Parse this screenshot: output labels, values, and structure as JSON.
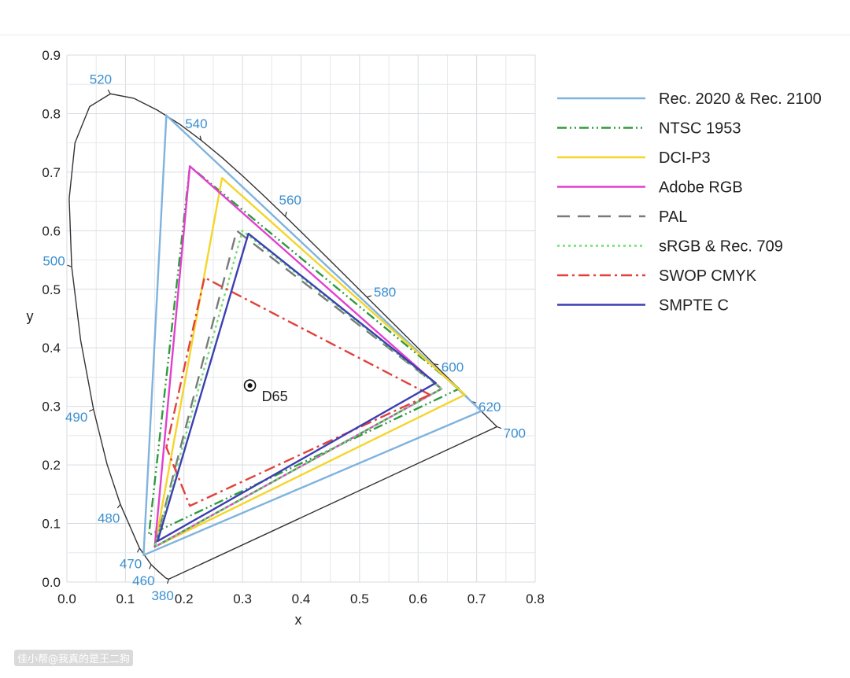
{
  "chart_data": {
    "type": "line",
    "title": "",
    "xlabel": "x",
    "ylabel": "y",
    "xlim": [
      0.0,
      0.8
    ],
    "ylim": [
      0.0,
      0.9
    ],
    "x_ticks": [
      "0.0",
      "0.1",
      "0.2",
      "0.3",
      "0.4",
      "0.5",
      "0.6",
      "0.7",
      "0.8"
    ],
    "y_ticks": [
      "0.0",
      "0.1",
      "0.2",
      "0.3",
      "0.4",
      "0.5",
      "0.6",
      "0.7",
      "0.8",
      "0.9"
    ],
    "grid": true,
    "legend_position": "right",
    "spectral_locus": {
      "points": [
        [
          0.1741,
          0.005
        ],
        [
          0.1738,
          0.0049
        ],
        [
          0.1689,
          0.0069
        ],
        [
          0.1644,
          0.0109
        ],
        [
          0.1566,
          0.0177
        ],
        [
          0.144,
          0.0297
        ],
        [
          0.1241,
          0.0578
        ],
        [
          0.0913,
          0.1327
        ],
        [
          0.0687,
          0.2007
        ],
        [
          0.0454,
          0.295
        ],
        [
          0.0235,
          0.4127
        ],
        [
          0.0082,
          0.5384
        ],
        [
          0.0039,
          0.6548
        ],
        [
          0.0139,
          0.7502
        ],
        [
          0.0389,
          0.812
        ],
        [
          0.0743,
          0.8338
        ],
        [
          0.1142,
          0.8262
        ],
        [
          0.1547,
          0.8059
        ],
        [
          0.1929,
          0.7816
        ],
        [
          0.2296,
          0.7543
        ],
        [
          0.2658,
          0.7243
        ],
        [
          0.3016,
          0.6923
        ],
        [
          0.3373,
          0.6589
        ],
        [
          0.3731,
          0.6245
        ],
        [
          0.4087,
          0.5896
        ],
        [
          0.4441,
          0.5547
        ],
        [
          0.4788,
          0.5202
        ],
        [
          0.5125,
          0.4866
        ],
        [
          0.5448,
          0.4544
        ],
        [
          0.5752,
          0.4242
        ],
        [
          0.6029,
          0.3965
        ],
        [
          0.627,
          0.3725
        ],
        [
          0.6482,
          0.3514
        ],
        [
          0.6658,
          0.334
        ],
        [
          0.6801,
          0.3197
        ],
        [
          0.6915,
          0.3083
        ],
        [
          0.7006,
          0.2993
        ],
        [
          0.714,
          0.2859
        ],
        [
          0.7347,
          0.2653
        ]
      ],
      "wavelength_labels": [
        {
          "nm": "380",
          "x": 0.1741,
          "y": 0.005
        },
        {
          "nm": "460",
          "x": 0.144,
          "y": 0.0297
        },
        {
          "nm": "470",
          "x": 0.1241,
          "y": 0.0578
        },
        {
          "nm": "480",
          "x": 0.0913,
          "y": 0.1327
        },
        {
          "nm": "490",
          "x": 0.0454,
          "y": 0.295
        },
        {
          "nm": "500",
          "x": 0.0082,
          "y": 0.5384
        },
        {
          "nm": "520",
          "x": 0.0743,
          "y": 0.8338
        },
        {
          "nm": "540",
          "x": 0.2296,
          "y": 0.7543
        },
        {
          "nm": "560",
          "x": 0.3731,
          "y": 0.6245
        },
        {
          "nm": "580",
          "x": 0.5125,
          "y": 0.4866
        },
        {
          "nm": "600",
          "x": 0.627,
          "y": 0.3725
        },
        {
          "nm": "620",
          "x": 0.6915,
          "y": 0.3083
        },
        {
          "nm": "700",
          "x": 0.7347,
          "y": 0.2653
        }
      ]
    },
    "white_point": {
      "label": "D65",
      "x": 0.3127,
      "y": 0.329
    },
    "series": [
      {
        "name": "Rec. 2020 & Rec. 2100",
        "color": "#7fb3de",
        "dash": "solid",
        "points": [
          [
            0.708,
            0.292
          ],
          [
            0.17,
            0.797
          ],
          [
            0.131,
            0.046
          ]
        ]
      },
      {
        "name": "NTSC 1953",
        "color": "#2e9b3c",
        "dash": "dashdotdot",
        "points": [
          [
            0.67,
            0.33
          ],
          [
            0.21,
            0.71
          ],
          [
            0.14,
            0.08
          ]
        ]
      },
      {
        "name": "DCI-P3",
        "color": "#f5d529",
        "dash": "solid",
        "points": [
          [
            0.68,
            0.32
          ],
          [
            0.265,
            0.69
          ],
          [
            0.15,
            0.06
          ]
        ]
      },
      {
        "name": "Adobe RGB",
        "color": "#e23fce",
        "dash": "solid",
        "points": [
          [
            0.64,
            0.33
          ],
          [
            0.21,
            0.71
          ],
          [
            0.15,
            0.06
          ]
        ]
      },
      {
        "name": "PAL",
        "color": "#7a7a7a",
        "dash": "longdash",
        "points": [
          [
            0.64,
            0.33
          ],
          [
            0.29,
            0.6
          ],
          [
            0.15,
            0.06
          ]
        ]
      },
      {
        "name": "sRGB & Rec. 709",
        "color": "#6fde72",
        "dash": "dotted",
        "points": [
          [
            0.64,
            0.33
          ],
          [
            0.3,
            0.6
          ],
          [
            0.15,
            0.06
          ]
        ]
      },
      {
        "name": "SWOP CMYK",
        "color": "#e0413b",
        "dash": "dashdot",
        "points": [
          [
            0.62,
            0.32
          ],
          [
            0.235,
            0.52
          ],
          [
            0.17,
            0.23
          ],
          [
            0.21,
            0.13
          ],
          [
            0.62,
            0.32
          ]
        ]
      },
      {
        "name": "SMPTE C",
        "color": "#3c3fb0",
        "dash": "solid",
        "points": [
          [
            0.63,
            0.34
          ],
          [
            0.31,
            0.595
          ],
          [
            0.155,
            0.07
          ]
        ]
      }
    ]
  },
  "watermark": "佳小帮@我真的是王二狗"
}
